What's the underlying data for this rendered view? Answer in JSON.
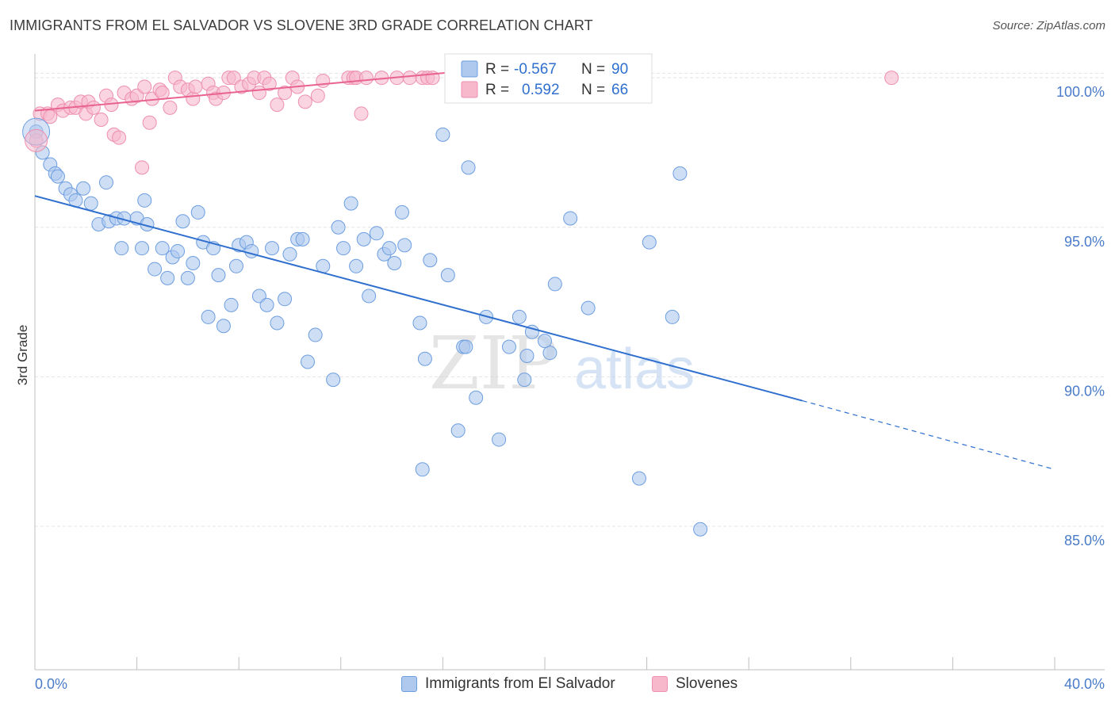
{
  "header": {
    "title": "IMMIGRANTS FROM EL SALVADOR VS SLOVENE 3RD GRADE CORRELATION CHART",
    "source": "Source: ZipAtlas.com"
  },
  "watermark": {
    "zip": "ZIP",
    "atlas": "atlas"
  },
  "colors": {
    "blue_fill": "#aec8ee",
    "blue_stroke": "#6d9ee0",
    "blue_line": "#2f6fce",
    "pink_fill": "#f7b8cb",
    "pink_stroke": "#ee8fae",
    "pink_line": "#e8638f",
    "axis_text": "#4a7cc9",
    "grid": "#e4e4e4"
  },
  "stats_legend": [
    {
      "r_label": "R =",
      "r_value": "-0.567",
      "n_label": "N =",
      "n_value": "90",
      "series": "blue"
    },
    {
      "r_label": "R =",
      "r_value": "0.592",
      "n_label": "N =",
      "n_value": "66",
      "series": "pink"
    }
  ],
  "chart_data": {
    "type": "scatter",
    "title": "IMMIGRANTS FROM EL SALVADOR VS SLOVENE 3RD GRADE CORRELATION CHART",
    "xlabel": "",
    "ylabel": "3rd Grade",
    "xlim": [
      0,
      40
    ],
    "ylim": [
      80.2,
      100.8
    ],
    "x_tick_labels": [
      "0.0%",
      "40.0%"
    ],
    "y_tick_values": [
      85,
      90,
      95,
      100
    ],
    "y_tick_labels": [
      "85.0%",
      "90.0%",
      "95.0%",
      "100.0%"
    ],
    "grid": true,
    "legend_position": "bottom",
    "series": [
      {
        "name": "Immigrants from El Salvador",
        "color": "#aec8ee",
        "trend": {
          "x0": 0,
          "y0": 96.05,
          "x1": 30.1,
          "y1": 89.2,
          "dashed_to_x": 40,
          "dashed_to_y": 86.9
        },
        "points": [
          [
            0.05,
            98.2
          ],
          [
            0.3,
            97.5
          ],
          [
            0.6,
            97.1
          ],
          [
            0.8,
            96.8
          ],
          [
            0.9,
            96.7
          ],
          [
            1.2,
            96.3
          ],
          [
            1.4,
            96.1
          ],
          [
            1.6,
            95.9
          ],
          [
            1.9,
            96.3
          ],
          [
            2.2,
            95.8
          ],
          [
            2.8,
            96.5
          ],
          [
            2.5,
            95.1
          ],
          [
            2.9,
            95.2
          ],
          [
            3.2,
            95.3
          ],
          [
            3.5,
            95.3
          ],
          [
            3.4,
            94.3
          ],
          [
            4.0,
            95.3
          ],
          [
            4.2,
            94.3
          ],
          [
            4.3,
            95.9
          ],
          [
            4.4,
            95.1
          ],
          [
            4.7,
            93.6
          ],
          [
            5.0,
            94.3
          ],
          [
            5.2,
            93.3
          ],
          [
            5.4,
            94.0
          ],
          [
            5.6,
            94.2
          ],
          [
            5.8,
            95.2
          ],
          [
            6.0,
            93.3
          ],
          [
            6.2,
            93.8
          ],
          [
            6.4,
            95.5
          ],
          [
            6.6,
            94.5
          ],
          [
            6.8,
            92.0
          ],
          [
            7.0,
            94.3
          ],
          [
            7.2,
            93.4
          ],
          [
            7.4,
            91.7
          ],
          [
            7.7,
            92.4
          ],
          [
            7.9,
            93.7
          ],
          [
            8.0,
            94.4
          ],
          [
            8.3,
            94.5
          ],
          [
            8.5,
            94.2
          ],
          [
            8.8,
            92.7
          ],
          [
            9.1,
            92.4
          ],
          [
            9.3,
            94.3
          ],
          [
            9.5,
            91.8
          ],
          [
            9.8,
            92.6
          ],
          [
            10.0,
            94.1
          ],
          [
            10.3,
            94.6
          ],
          [
            10.5,
            94.6
          ],
          [
            10.7,
            90.5
          ],
          [
            11.0,
            91.4
          ],
          [
            11.3,
            93.7
          ],
          [
            11.7,
            89.9
          ],
          [
            11.9,
            95.0
          ],
          [
            12.1,
            94.3
          ],
          [
            12.4,
            95.8
          ],
          [
            12.6,
            93.7
          ],
          [
            12.9,
            94.6
          ],
          [
            13.1,
            92.7
          ],
          [
            13.4,
            94.8
          ],
          [
            13.7,
            94.1
          ],
          [
            13.9,
            94.3
          ],
          [
            14.1,
            93.8
          ],
          [
            14.4,
            95.5
          ],
          [
            14.5,
            94.4
          ],
          [
            15.1,
            91.8
          ],
          [
            15.2,
            86.9
          ],
          [
            15.5,
            93.9
          ],
          [
            15.3,
            90.6
          ],
          [
            16.2,
            93.4
          ],
          [
            16.6,
            88.2
          ],
          [
            16.0,
            98.1
          ],
          [
            16.8,
            91.0
          ],
          [
            16.9,
            91.0
          ],
          [
            17.0,
            97.0
          ],
          [
            17.3,
            89.3
          ],
          [
            17.7,
            92.0
          ],
          [
            18.0,
            100.5
          ],
          [
            18.2,
            87.9
          ],
          [
            18.6,
            91.0
          ],
          [
            19.0,
            92.0
          ],
          [
            19.2,
            89.9
          ],
          [
            19.3,
            90.7
          ],
          [
            19.5,
            91.5
          ],
          [
            20.2,
            90.8
          ],
          [
            20.0,
            91.2
          ],
          [
            20.4,
            93.1
          ],
          [
            21.0,
            95.3
          ],
          [
            21.7,
            92.3
          ],
          [
            23.7,
            86.6
          ],
          [
            24.1,
            94.5
          ],
          [
            25.3,
            96.8
          ],
          [
            26.1,
            84.9
          ],
          [
            25.0,
            92.0
          ]
        ]
      },
      {
        "name": "Slovenes",
        "color": "#f7b8cb",
        "trend": {
          "x0": 0,
          "y0": 98.9,
          "x1": 17.8,
          "y1": 100.3
        },
        "points": [
          [
            0.05,
            97.9
          ],
          [
            0.2,
            98.8
          ],
          [
            0.5,
            98.8
          ],
          [
            0.6,
            98.7
          ],
          [
            0.9,
            99.1
          ],
          [
            1.1,
            98.9
          ],
          [
            1.4,
            99.0
          ],
          [
            1.6,
            99.0
          ],
          [
            1.8,
            99.2
          ],
          [
            2.0,
            98.8
          ],
          [
            2.1,
            99.2
          ],
          [
            2.3,
            99.0
          ],
          [
            2.6,
            98.6
          ],
          [
            2.8,
            99.4
          ],
          [
            3.0,
            99.1
          ],
          [
            3.1,
            98.1
          ],
          [
            3.3,
            98.0
          ],
          [
            3.5,
            99.5
          ],
          [
            3.8,
            99.3
          ],
          [
            4.0,
            99.4
          ],
          [
            4.2,
            97.0
          ],
          [
            4.3,
            99.7
          ],
          [
            4.5,
            98.5
          ],
          [
            4.6,
            99.3
          ],
          [
            4.9,
            99.6
          ],
          [
            5.0,
            99.5
          ],
          [
            5.3,
            99.0
          ],
          [
            5.5,
            100.0
          ],
          [
            5.7,
            99.7
          ],
          [
            6.0,
            99.6
          ],
          [
            6.2,
            99.3
          ],
          [
            6.3,
            99.7
          ],
          [
            6.8,
            99.8
          ],
          [
            7.0,
            99.5
          ],
          [
            7.1,
            99.3
          ],
          [
            7.4,
            99.5
          ],
          [
            7.6,
            100.0
          ],
          [
            7.8,
            100.0
          ],
          [
            8.1,
            99.7
          ],
          [
            8.4,
            99.8
          ],
          [
            8.6,
            100.0
          ],
          [
            8.8,
            99.5
          ],
          [
            9.0,
            100.0
          ],
          [
            9.2,
            99.8
          ],
          [
            9.5,
            99.1
          ],
          [
            9.8,
            99.5
          ],
          [
            10.1,
            100.0
          ],
          [
            10.3,
            99.7
          ],
          [
            10.6,
            99.2
          ],
          [
            11.1,
            99.4
          ],
          [
            11.3,
            99.9
          ],
          [
            12.3,
            100.0
          ],
          [
            12.5,
            100.0
          ],
          [
            12.6,
            100.0
          ],
          [
            12.8,
            98.8
          ],
          [
            13.0,
            100.0
          ],
          [
            13.6,
            100.0
          ],
          [
            14.2,
            100.0
          ],
          [
            14.7,
            100.0
          ],
          [
            15.2,
            100.0
          ],
          [
            15.4,
            100.0
          ],
          [
            15.6,
            100.0
          ],
          [
            16.8,
            100.0
          ],
          [
            17.1,
            99.8
          ],
          [
            17.6,
            100.0
          ],
          [
            33.6,
            100.0
          ]
        ]
      }
    ]
  }
}
